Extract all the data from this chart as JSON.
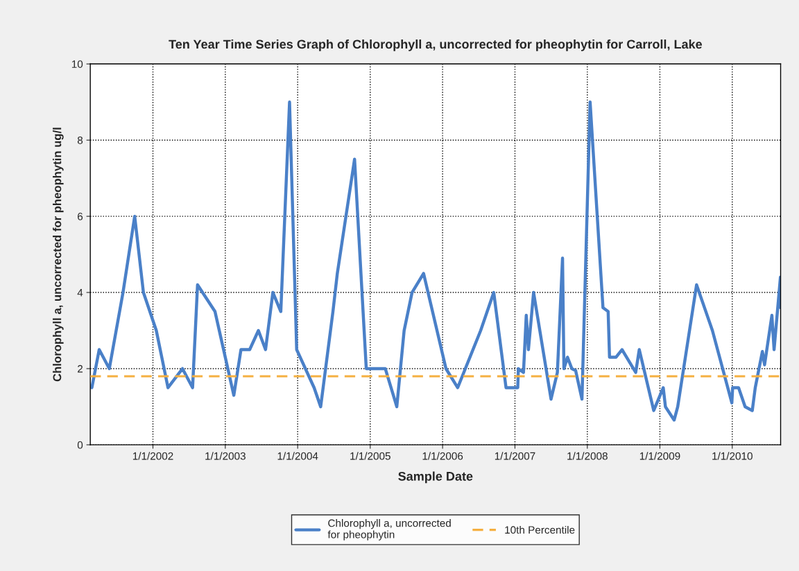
{
  "chart_data": {
    "type": "line",
    "title": "Ten Year Time Series Graph of Chlorophyll a, uncorrected for pheophytin for Carroll, Lake",
    "xlabel": "Sample Date",
    "ylabel": "Chlorophyll a, uncorrected for pheophytin ug/l",
    "x": [
      "2001-02-27",
      "2001-04-05",
      "2001-05-26",
      "2001-08-03",
      "2001-10-01",
      "2001-11-14",
      "2002-01-18",
      "2002-03-18",
      "2002-05-30",
      "2002-07-20",
      "2002-08-14",
      "2002-11-10",
      "2003-02-13",
      "2003-03-21",
      "2003-05-04",
      "2003-06-17",
      "2003-07-23",
      "2003-08-29",
      "2003-10-08",
      "2003-11-21",
      "2003-12-27",
      "2004-03-24",
      "2004-04-26",
      "2004-06-27",
      "2004-07-19",
      "2004-10-14",
      "2004-12-12",
      "2005-03-18",
      "2005-05-15",
      "2005-06-21",
      "2005-07-31",
      "2005-09-27",
      "2006-01-18",
      "2006-03-18",
      "2006-07-12",
      "2006-09-16",
      "2006-11-17",
      "2007-01-15",
      "2007-01-18",
      "2007-02-13",
      "2007-02-27",
      "2007-03-10",
      "2007-04-05",
      "2007-07-02",
      "2007-08-03",
      "2007-08-29",
      "2007-09-05",
      "2007-09-23",
      "2007-10-15",
      "2007-11-03",
      "2007-12-05",
      "2008-01-15",
      "2008-03-20",
      "2008-04-15",
      "2008-04-22",
      "2008-05-25",
      "2008-06-24",
      "2008-09-01",
      "2008-09-19",
      "2008-12-01",
      "2009-01-18",
      "2009-01-29",
      "2009-03-14",
      "2009-04-01",
      "2009-07-05",
      "2009-09-23",
      "2009-12-30",
      "2010-01-03",
      "2010-02-02",
      "2010-03-07",
      "2010-04-12",
      "2010-04-27",
      "2010-06-02",
      "2010-06-13",
      "2010-07-20",
      "2010-07-31",
      "2010-09-01",
      "2010-09-02"
    ],
    "series": [
      {
        "name": "Chlorophyll a, uncorrected\nfor pheophytin",
        "color": "#4a80c8",
        "values": [
          1.5,
          2.5,
          2.0,
          4.0,
          6.0,
          4.0,
          3.0,
          1.5,
          2.0,
          1.5,
          4.2,
          3.5,
          1.3,
          2.5,
          2.5,
          3.0,
          2.5,
          4.0,
          3.5,
          9.0,
          2.5,
          1.5,
          1.0,
          3.5,
          4.5,
          7.5,
          2.0,
          2.0,
          1.0,
          3.0,
          4.0,
          4.5,
          2.0,
          1.5,
          3.0,
          4.0,
          1.5,
          1.5,
          2.0,
          1.9,
          3.4,
          2.5,
          4.0,
          1.2,
          1.9,
          4.9,
          2.0,
          2.3,
          2.0,
          1.95,
          1.2,
          9.0,
          3.6,
          3.5,
          2.3,
          2.3,
          2.5,
          1.9,
          2.5,
          0.9,
          1.5,
          1.0,
          0.65,
          1.0,
          4.2,
          3.0,
          1.1,
          1.5,
          1.5,
          1.0,
          0.9,
          1.5,
          2.45,
          2.1,
          3.4,
          2.5,
          4.4,
          3.6
        ]
      }
    ],
    "ref_lines": [
      {
        "axis": "y",
        "value": 1.8,
        "label": "10th Percentile",
        "color": "#f5b041",
        "line_style": "dashed"
      }
    ],
    "xlim": [
      "2001-02-19",
      "2010-09-02"
    ],
    "xticks": [
      {
        "value": "2002-01-01",
        "label": "1/1/2002"
      },
      {
        "value": "2003-01-01",
        "label": "1/1/2003"
      },
      {
        "value": "2004-01-01",
        "label": "1/1/2004"
      },
      {
        "value": "2005-01-01",
        "label": "1/1/2005"
      },
      {
        "value": "2006-01-01",
        "label": "1/1/2006"
      },
      {
        "value": "2007-01-01",
        "label": "1/1/2007"
      },
      {
        "value": "2008-01-01",
        "label": "1/1/2008"
      },
      {
        "value": "2009-01-01",
        "label": "1/1/2009"
      },
      {
        "value": "2010-01-01",
        "label": "1/1/2010"
      }
    ],
    "ylim": [
      0,
      10
    ],
    "yticks": [
      0,
      2,
      4,
      6,
      8,
      10
    ],
    "grid": true,
    "legend": "bottom",
    "line_style": "solid",
    "marker": "none"
  }
}
